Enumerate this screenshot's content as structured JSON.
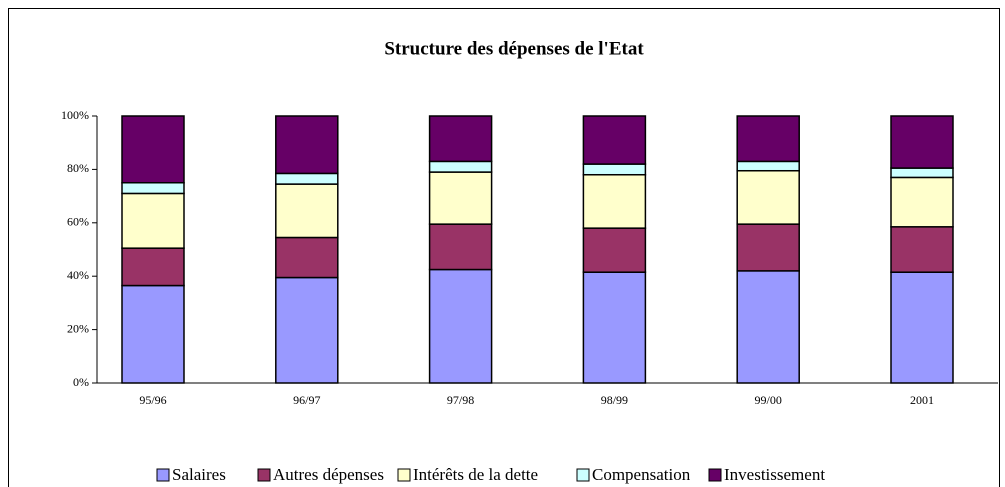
{
  "chart_data": {
    "type": "stacked_bar",
    "title": "Structure des dépenses de l'Etat",
    "categories": [
      "95/96",
      "96/97",
      "97/98",
      "98/99",
      "99/00",
      "2001"
    ],
    "series": [
      {
        "name": "Salaires",
        "color": "#9999ff",
        "values": [
          36.5,
          39.5,
          42.5,
          41.5,
          42,
          41.5
        ]
      },
      {
        "name": "Autres dépenses",
        "color": "#993366",
        "values": [
          14,
          15,
          17,
          16.5,
          17.5,
          17
        ]
      },
      {
        "name": "Intérêts de la dette",
        "color": "#ffffcc",
        "values": [
          20.5,
          20,
          19.5,
          20,
          20,
          18.5
        ]
      },
      {
        "name": "Compensation",
        "color": "#ccffff",
        "values": [
          4,
          4,
          4,
          4,
          3.5,
          3.5
        ]
      },
      {
        "name": "Investissement",
        "color": "#660066",
        "values": [
          25,
          21.5,
          17,
          18,
          17,
          19.5
        ]
      }
    ],
    "ylim": [
      0,
      100
    ],
    "yticks": [
      {
        "value": 0,
        "label": "0%"
      },
      {
        "value": 20,
        "label": "20%"
      },
      {
        "value": 40,
        "label": "40%"
      },
      {
        "value": 60,
        "label": "60%"
      },
      {
        "value": 80,
        "label": "80%"
      },
      {
        "value": 100,
        "label": "100%"
      }
    ],
    "legend": "bottom"
  }
}
